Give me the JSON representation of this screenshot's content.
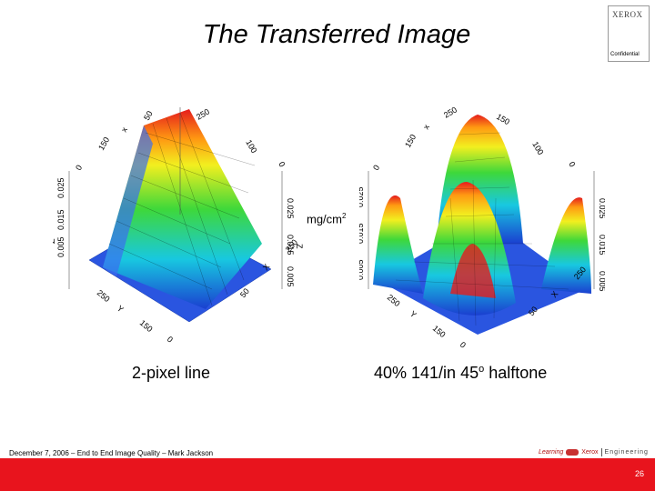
{
  "slide": {
    "title": "The Transferred Image",
    "units_label": "mg/cm",
    "units_sup": "2",
    "caption_left": "2-pixel line",
    "caption_right_prefix": "40% 141/in 45",
    "caption_right_sup": "o",
    "caption_right_suffix": " halftone",
    "footer_text": "December 7, 2006 – End to End Image Quality – Mark Jackson",
    "page_number": "26",
    "logo": {
      "brand": "XEROX",
      "label": "Confidential"
    },
    "footer_logo": {
      "left": "Learning",
      "mid": "Xerox",
      "right": "Engineering"
    }
  },
  "colors": {
    "accent_bar": "#e8141d",
    "surface_high": "#e51c1c",
    "surface_low": "#2b4fd6"
  }
}
